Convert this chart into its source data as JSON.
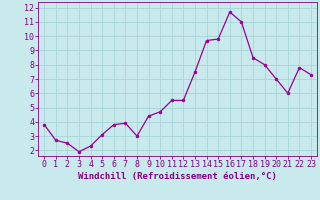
{
  "x": [
    0,
    1,
    2,
    3,
    4,
    5,
    6,
    7,
    8,
    9,
    10,
    11,
    12,
    13,
    14,
    15,
    16,
    17,
    18,
    19,
    20,
    21,
    22,
    23
  ],
  "y": [
    3.8,
    2.7,
    2.5,
    1.9,
    2.3,
    3.1,
    3.8,
    3.9,
    3.0,
    4.4,
    4.7,
    5.5,
    5.5,
    7.5,
    9.7,
    9.8,
    11.7,
    11.0,
    8.5,
    8.0,
    7.0,
    6.0,
    7.8,
    7.3
  ],
  "line_color": "#990099",
  "marker": "o",
  "marker_size": 2.0,
  "background_color": "#c8eaed",
  "grid_color": "#aad4d8",
  "xlabel": "Windchill (Refroidissement éolien,°C)",
  "yticks": [
    2,
    3,
    4,
    5,
    6,
    7,
    8,
    9,
    10,
    11,
    12
  ],
  "xlim": [
    -0.5,
    23.5
  ],
  "ylim": [
    1.6,
    12.4
  ],
  "xticks": [
    0,
    1,
    2,
    3,
    4,
    5,
    6,
    7,
    8,
    9,
    10,
    11,
    12,
    13,
    14,
    15,
    16,
    17,
    18,
    19,
    20,
    21,
    22,
    23
  ],
  "xlabel_color": "#880088",
  "tick_color": "#880088",
  "label_fontsize": 6.5,
  "tick_fontsize": 6.0,
  "linewidth": 0.9
}
